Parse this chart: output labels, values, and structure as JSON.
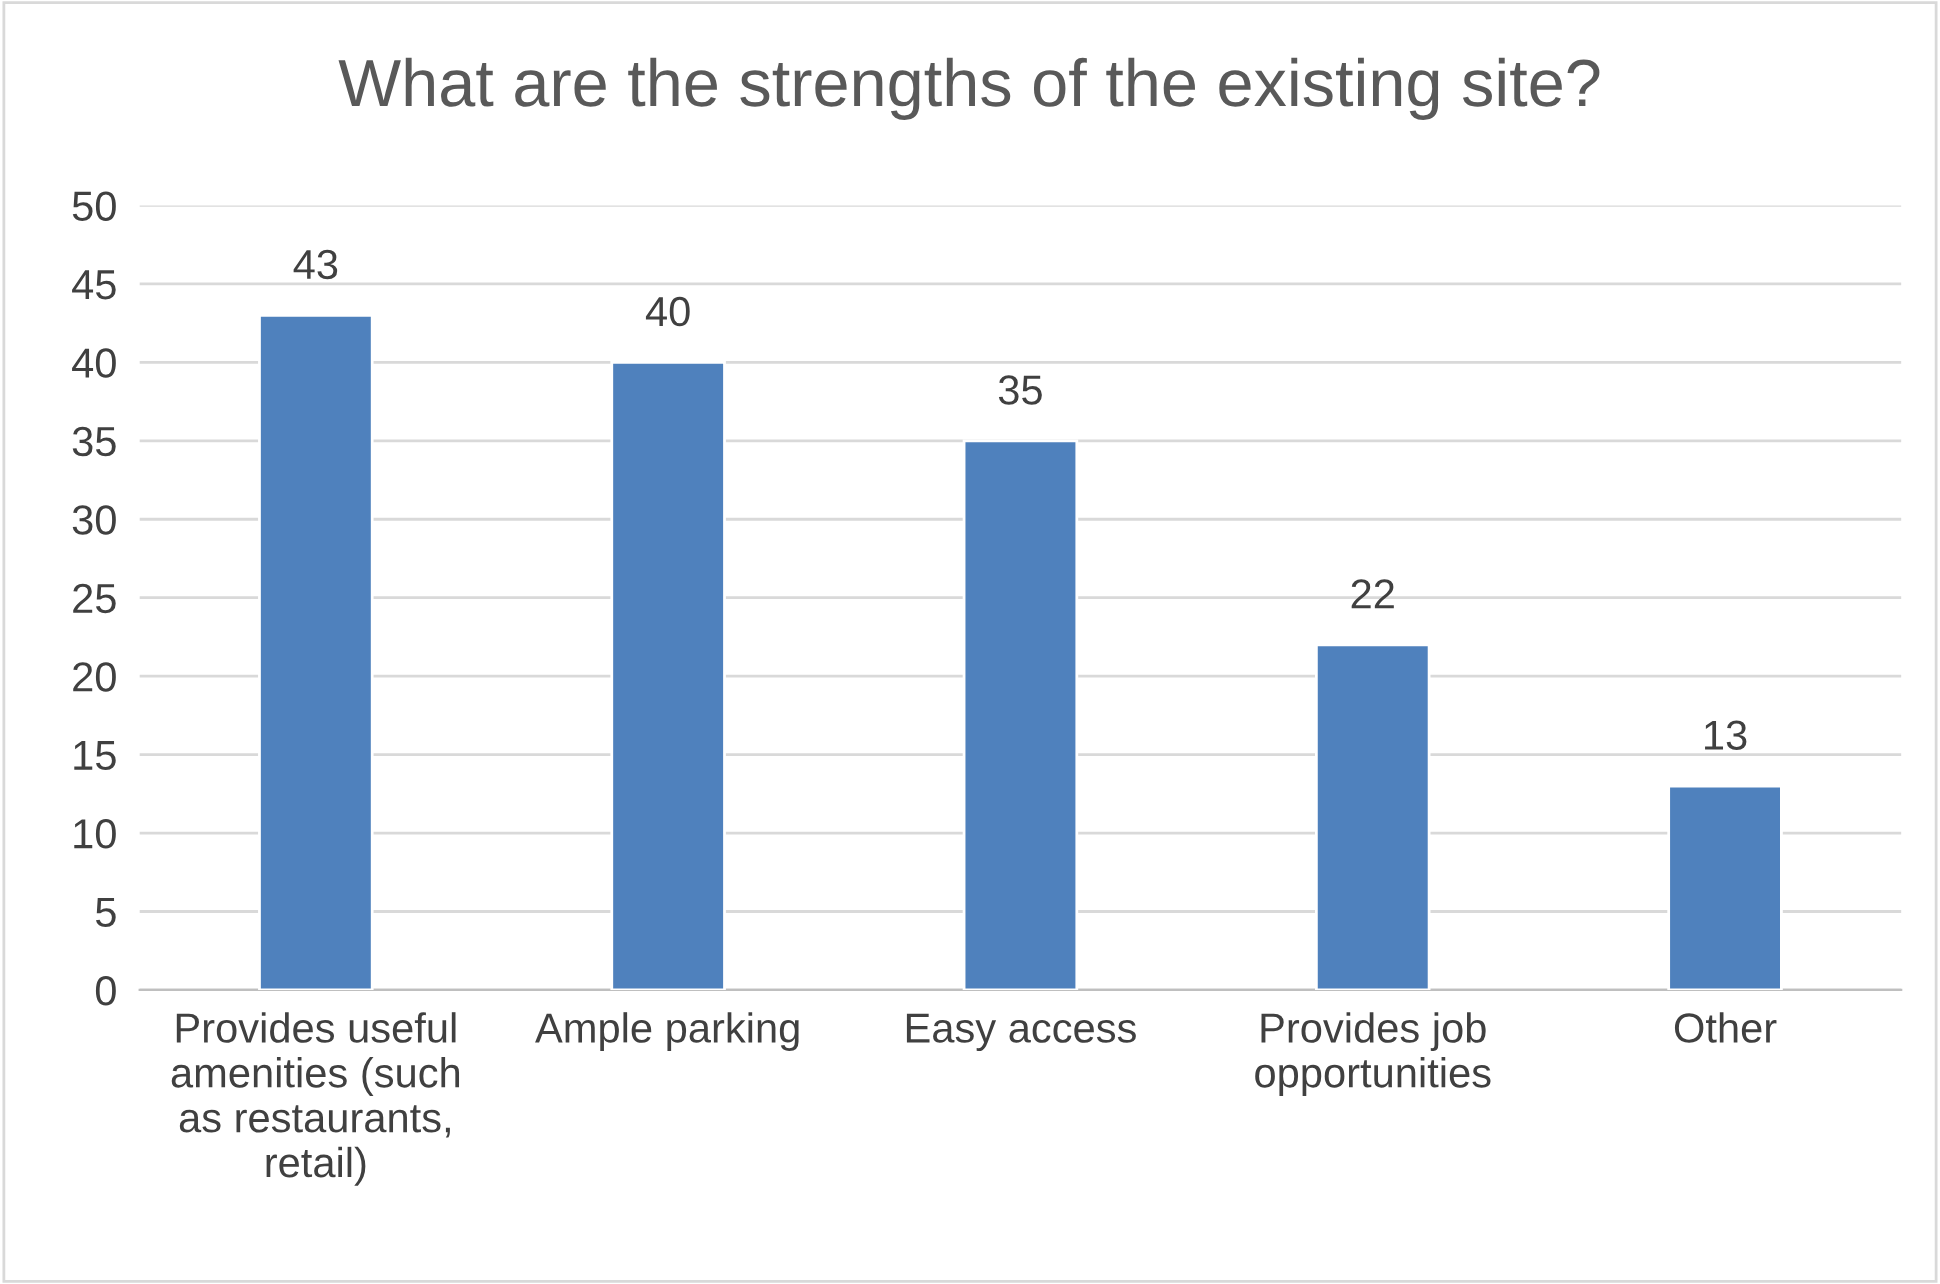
{
  "chart_data": {
    "type": "bar",
    "title": "What are the strengths of the existing site?",
    "categories": [
      "Provides useful\namenities (such\nas restaurants,\nretail)",
      "Ample parking",
      "Easy access",
      "Provides job\nopportunities",
      "Other"
    ],
    "values": [
      43,
      40,
      35,
      22,
      13
    ],
    "color": "#4f81bd",
    "ylim": [
      0,
      50
    ],
    "yticks": [
      0,
      5,
      10,
      15,
      20,
      25,
      30,
      35,
      40,
      45,
      50
    ],
    "grid": "y",
    "data_labels": true
  }
}
